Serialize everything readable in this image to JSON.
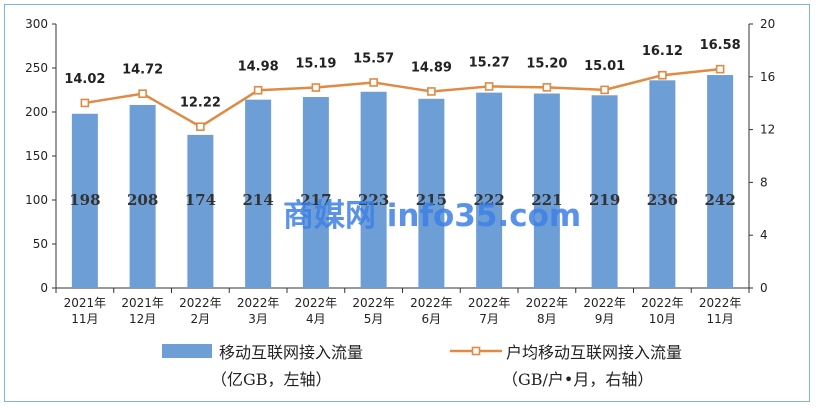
{
  "watermark": "商媒网 info35.com",
  "chart_data": {
    "type": "bar",
    "categories": [
      [
        "2021年",
        "11月"
      ],
      [
        "2021年",
        "12月"
      ],
      [
        "2022年",
        "2月"
      ],
      [
        "2022年",
        "3月"
      ],
      [
        "2022年",
        "4月"
      ],
      [
        "2022年",
        "5月"
      ],
      [
        "2022年",
        "6月"
      ],
      [
        "2022年",
        "7月"
      ],
      [
        "2022年",
        "8月"
      ],
      [
        "2022年",
        "9月"
      ],
      [
        "2022年",
        "10月"
      ],
      [
        "2022年",
        "11月"
      ]
    ],
    "series": [
      {
        "name": "移动互联网接入流量",
        "name_line2": "（亿GB，左轴）",
        "kind": "bar",
        "axis": "left",
        "color": "#6d9fd6",
        "values": [
          198,
          208,
          174,
          214,
          217,
          223,
          215,
          222,
          221,
          219,
          236,
          242
        ],
        "labels": [
          "198",
          "208",
          "174",
          "214",
          "217",
          "223",
          "215",
          "222",
          "221",
          "219",
          "236",
          "242"
        ]
      },
      {
        "name": "户均移动互联网接入流量",
        "name_line2": "（GB/户•月，右轴）",
        "kind": "line",
        "axis": "right",
        "color": "#e08a43",
        "values": [
          14.02,
          14.72,
          12.22,
          14.98,
          15.19,
          15.57,
          14.89,
          15.27,
          15.2,
          15.01,
          16.12,
          16.58
        ],
        "labels": [
          "14.02",
          "14.72",
          "12.22",
          "14.98",
          "15.19",
          "15.57",
          "14.89",
          "15.27",
          "15.20",
          "15.01",
          "16.12",
          "16.58"
        ]
      }
    ],
    "y_left": {
      "min": 0,
      "max": 300,
      "ticks": [
        "0",
        "50",
        "100",
        "150",
        "200",
        "250",
        "300"
      ]
    },
    "y_right": {
      "min": 0,
      "max": 20,
      "ticks": [
        "0",
        "4",
        "8",
        "12",
        "16",
        "20"
      ]
    },
    "grid": false,
    "legend_position": "bottom"
  }
}
